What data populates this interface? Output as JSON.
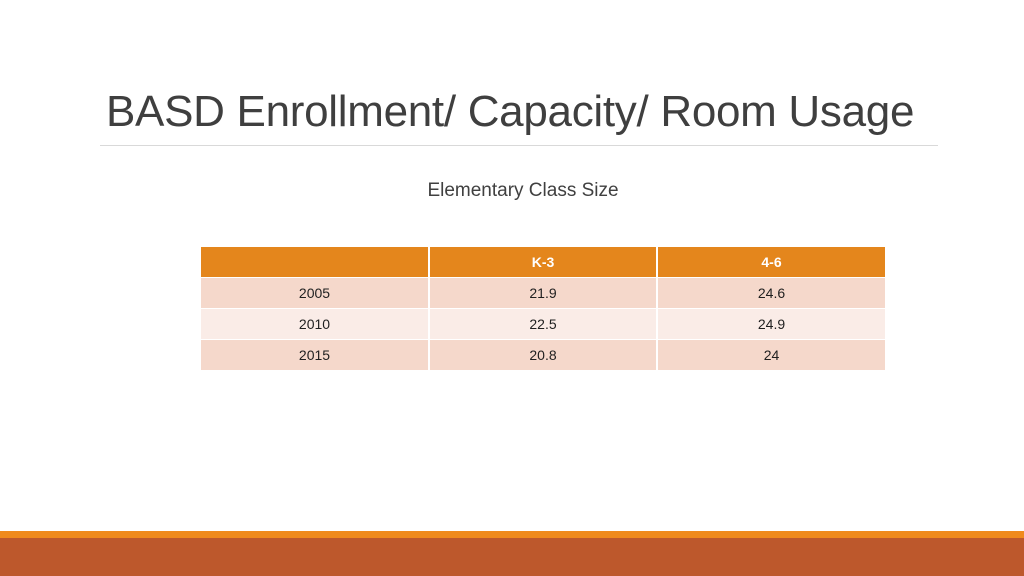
{
  "slide": {
    "title": "BASD Enrollment/ Capacity/ Room Usage",
    "subtitle": "Elementary Class Size"
  },
  "table": {
    "headers": [
      "",
      "K-3",
      "4-6"
    ],
    "rows": [
      [
        "2005",
        "21.9",
        "24.6"
      ],
      [
        "2010",
        "22.5",
        "24.9"
      ],
      [
        "2015",
        "20.8",
        "24"
      ]
    ]
  },
  "colors": {
    "header_fill": "#e4861c",
    "row_odd_fill": "#f5d8cb",
    "row_even_fill": "#faece7",
    "footer_accent": "#f08a1c",
    "footer_bar": "#bd582c"
  }
}
